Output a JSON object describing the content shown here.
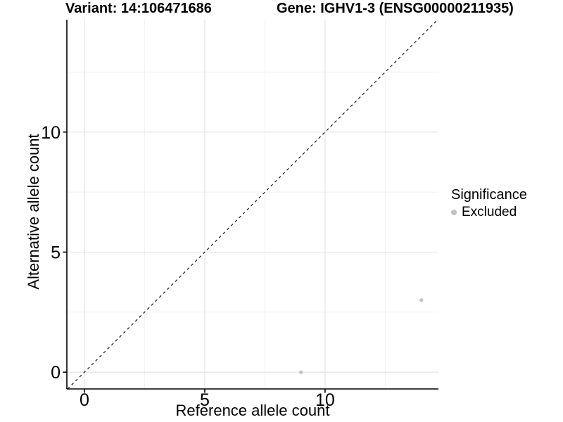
{
  "header": {
    "title_left": "Variant: 14:106471686",
    "title_right": "Gene: IGHV1-3 (ENSG00000211935)"
  },
  "legend": {
    "title": "Significance",
    "items": [
      {
        "label": "Excluded",
        "color": "#c2c2c2"
      }
    ]
  },
  "chart_data": {
    "type": "scatter",
    "title_left": "Variant: 14:106471686",
    "title_right": "Gene: IGHV1-3 (ENSG00000211935)",
    "xlabel": "Reference allele count",
    "ylabel": "Alternative allele count",
    "xlim": [
      -0.73,
      14.71
    ],
    "ylim": [
      -0.7,
      14.68
    ],
    "x_ticks": [
      0,
      5,
      10
    ],
    "y_ticks": [
      0,
      5,
      10
    ],
    "x_minor_ticks": [
      2.5,
      7.5,
      12.5
    ],
    "y_minor_ticks": [
      2.5,
      7.5,
      12.5
    ],
    "grid": true,
    "legend_title": "Significance",
    "legend_position": "right",
    "series": [
      {
        "name": "Excluded",
        "color": "#c2c2c2",
        "points": [
          {
            "x": 9,
            "y": 0
          },
          {
            "x": 14,
            "y": 3
          }
        ]
      }
    ],
    "reference_line": {
      "type": "identity",
      "equation": "y = x",
      "style": "dashed",
      "color": "#1a1a1a"
    },
    "colors": {
      "major_grid": "#e4e4e4",
      "minor_grid": "#f1f1f1",
      "axis_line": "#000000",
      "tick_text": "#000000"
    }
  }
}
